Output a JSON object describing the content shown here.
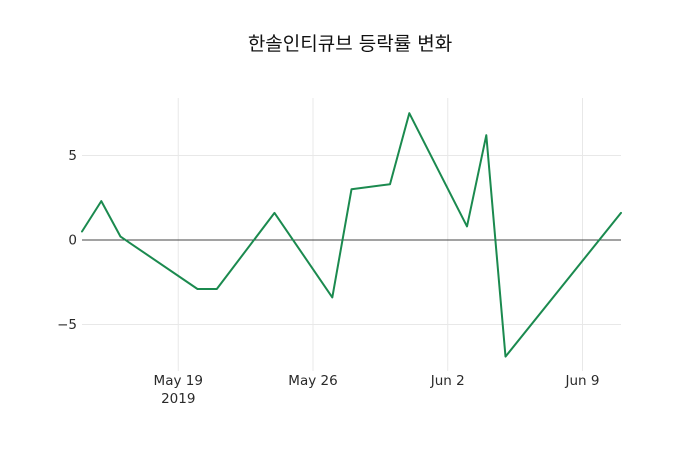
{
  "chart_data": {
    "type": "line",
    "title": "한솔인티큐브 등락률 변화",
    "series": [
      {
        "name": "한솔인티큐브 등락률",
        "x": [
          "2019-05-14",
          "2019-05-15",
          "2019-05-16",
          "2019-05-20",
          "2019-05-21",
          "2019-05-24",
          "2019-05-27",
          "2019-05-28",
          "2019-05-30",
          "2019-05-31",
          "2019-06-03",
          "2019-06-04",
          "2019-06-05",
          "2019-06-11"
        ],
        "y": [
          0.5,
          2.3,
          0.2,
          -2.9,
          -2.9,
          1.6,
          -3.4,
          3.0,
          3.3,
          7.5,
          0.8,
          6.2,
          -6.9,
          1.6
        ]
      }
    ],
    "xaxis": {
      "range": [
        "2019-05-14",
        "2019-06-11"
      ],
      "ticks": [
        {
          "date": "2019-05-19",
          "label": "May 19",
          "sublabel": "2019"
        },
        {
          "date": "2019-05-26",
          "label": "May 26",
          "sublabel": ""
        },
        {
          "date": "2019-06-02",
          "label": "Jun 2",
          "sublabel": ""
        },
        {
          "date": "2019-06-09",
          "label": "Jun 9",
          "sublabel": ""
        }
      ]
    },
    "yaxis": {
      "range": [
        -7.4,
        8.4
      ],
      "zeroline_value": 0,
      "ticks": [
        {
          "value": 5,
          "label": "5"
        },
        {
          "value": 0,
          "label": "0"
        },
        {
          "value": -5,
          "label": "−5"
        }
      ]
    },
    "grid": true,
    "legend": false
  },
  "style": {
    "line_color": "#1b8a4f",
    "grid_color": "#e8e8e8",
    "zeroline_color": "#444444",
    "tick_text_color": "#2a2a2a",
    "title_color": "#111111",
    "background": "#ffffff"
  }
}
